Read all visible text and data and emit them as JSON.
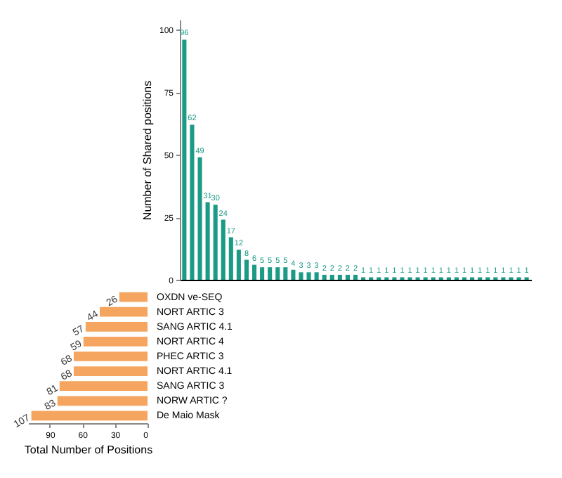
{
  "chart_data": [
    {
      "type": "bar",
      "ylabel": "Number of Shared positions",
      "categories": [
        null,
        null,
        null,
        null,
        null,
        null,
        null,
        null,
        null,
        null,
        null,
        null,
        null,
        null,
        null,
        null,
        null,
        null,
        null,
        null,
        null,
        null,
        null,
        null,
        null,
        null,
        null,
        null,
        null,
        null,
        null,
        null,
        null,
        null,
        null,
        null,
        null,
        null,
        null,
        null,
        null,
        null,
        null,
        null,
        null
      ],
      "values": [
        96,
        62,
        49,
        31,
        30,
        24,
        17,
        12,
        8,
        6,
        5,
        5,
        5,
        5,
        4,
        3,
        3,
        3,
        2,
        2,
        2,
        2,
        2,
        1,
        1,
        1,
        1,
        1,
        1,
        1,
        1,
        1,
        1,
        1,
        1,
        1,
        1,
        1,
        1,
        1,
        1,
        1,
        1,
        1,
        1
      ],
      "color": "#1b9a86",
      "ylim": [
        0,
        104
      ],
      "yticks": [
        0,
        25,
        50,
        75,
        100
      ],
      "data_labels": true,
      "grid": false
    },
    {
      "type": "bar",
      "orientation": "horizontal",
      "xlabel": "Total Number of Positions",
      "categories": [
        "OXDN ve-SEQ",
        "NORT ARTIC 3",
        "SANG ARTIC 4.1",
        "NORT ARTIC 4",
        "PHEC ARTIC 3",
        "NORT ARTIC 4.1",
        "SANG ARTIC 3",
        "NORW ARTIC ?",
        "De Maio Mask"
      ],
      "values": [
        26,
        44,
        57,
        59,
        68,
        68,
        81,
        83,
        107
      ],
      "color": "#f5a55f",
      "xlim": [
        110,
        0
      ],
      "xticks": [
        90,
        60,
        30,
        0
      ],
      "data_labels": true,
      "grid": false
    }
  ]
}
